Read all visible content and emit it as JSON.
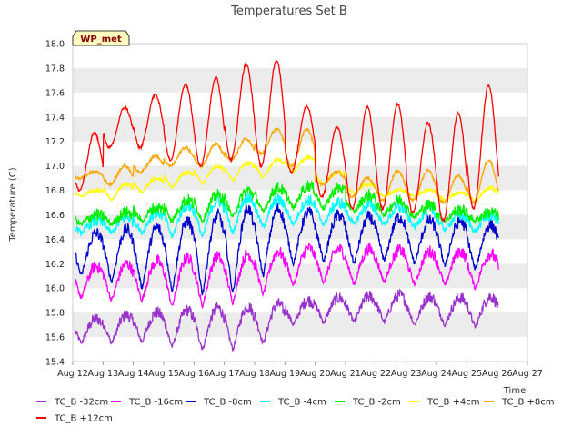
{
  "chart_data": {
    "type": "line",
    "title": "Temperatures Set B",
    "xlabel": "Time",
    "ylabel": "Temperature (C)",
    "ylim": [
      15.4,
      18.0
    ],
    "xlim": [
      "Aug 12",
      "Aug 27"
    ],
    "grid": "horizontal bands",
    "legend_position": "bottom",
    "station_label": "WP_met",
    "x_ticks": [
      "Aug 12",
      "Aug 13",
      "Aug 14",
      "Aug 15",
      "Aug 16",
      "Aug 17",
      "Aug 18",
      "Aug 19",
      "Aug 20",
      "Aug 21",
      "Aug 22",
      "Aug 23",
      "Aug 24",
      "Aug 25",
      "Aug 26",
      "Aug 27"
    ],
    "y_ticks": [
      "15.4",
      "15.6",
      "15.8",
      "16.0",
      "16.2",
      "16.4",
      "16.6",
      "16.8",
      "17.0",
      "17.2",
      "17.4",
      "17.6",
      "17.8",
      "18.0"
    ],
    "series": [
      {
        "name": "TC_B -32cm",
        "color": "#9932cc",
        "daily_min": [
          15.55,
          15.55,
          15.56,
          15.52,
          15.5,
          15.5,
          15.55,
          15.7,
          15.72,
          15.72,
          15.72,
          15.7,
          15.7,
          15.68
        ],
        "daily_max": [
          15.75,
          15.78,
          15.8,
          15.82,
          15.84,
          15.85,
          15.87,
          15.9,
          15.92,
          15.93,
          15.94,
          15.93,
          15.92,
          15.93
        ]
      },
      {
        "name": "TC_B -16cm",
        "color": "#ff00ff",
        "daily_min": [
          15.92,
          15.9,
          15.9,
          15.85,
          15.85,
          15.88,
          15.95,
          16.02,
          16.05,
          16.03,
          16.05,
          16.03,
          16.02,
          16.0
        ],
        "daily_max": [
          16.18,
          16.2,
          16.22,
          16.25,
          16.26,
          16.28,
          16.3,
          16.33,
          16.32,
          16.32,
          16.31,
          16.3,
          16.3,
          16.28
        ]
      },
      {
        "name": "TC_B -8cm",
        "color": "#0000cd",
        "daily_min": [
          16.1,
          16.05,
          16.0,
          15.98,
          15.95,
          15.96,
          16.1,
          16.2,
          16.22,
          16.2,
          16.22,
          16.2,
          16.18,
          16.15
        ],
        "daily_max": [
          16.45,
          16.48,
          16.5,
          16.55,
          16.6,
          16.65,
          16.65,
          16.62,
          16.6,
          16.58,
          16.58,
          16.55,
          16.55,
          16.52
        ]
      },
      {
        "name": "TC_B -4cm",
        "color": "#00ffff",
        "daily_min": [
          16.45,
          16.45,
          16.45,
          16.42,
          16.42,
          16.45,
          16.5,
          16.52,
          16.52,
          16.52,
          16.52,
          16.5,
          16.48,
          16.46
        ],
        "daily_max": [
          16.55,
          16.58,
          16.62,
          16.68,
          16.72,
          16.75,
          16.72,
          16.72,
          16.7,
          16.68,
          16.66,
          16.64,
          16.6,
          16.6
        ]
      },
      {
        "name": "TC_B -2cm",
        "color": "#00ee00",
        "daily_min": [
          16.52,
          16.52,
          16.55,
          16.55,
          16.55,
          16.58,
          16.62,
          16.65,
          16.65,
          16.62,
          16.6,
          16.58,
          16.55,
          16.55
        ],
        "daily_max": [
          16.6,
          16.62,
          16.66,
          16.72,
          16.76,
          16.8,
          16.82,
          16.84,
          16.82,
          16.76,
          16.72,
          16.68,
          16.64,
          16.62
        ]
      },
      {
        "name": "TC_B +4cm",
        "color": "#ffff00",
        "daily_min": [
          16.75,
          16.72,
          16.78,
          16.82,
          16.85,
          16.88,
          16.9,
          16.95,
          16.85,
          16.78,
          16.75,
          16.75,
          16.72,
          16.7
        ],
        "daily_max": [
          16.8,
          16.85,
          16.9,
          16.95,
          17.0,
          17.02,
          17.05,
          17.07,
          16.95,
          16.85,
          16.8,
          16.8,
          16.78,
          16.82
        ]
      },
      {
        "name": "TC_B +8cm",
        "color": "#ffa500",
        "daily_min": [
          16.9,
          16.85,
          16.95,
          17.0,
          17.0,
          17.05,
          17.1,
          17.0,
          16.85,
          16.75,
          16.72,
          16.72,
          16.7,
          16.7
        ],
        "daily_max": [
          16.95,
          17.0,
          17.08,
          17.15,
          17.18,
          17.22,
          17.3,
          17.3,
          16.95,
          16.9,
          16.96,
          16.96,
          16.92,
          17.05
        ]
      },
      {
        "name": "TC_B +12cm",
        "color": "#ff0000",
        "daily_min": [
          16.8,
          17.15,
          17.15,
          17.05,
          17.0,
          17.05,
          17.0,
          16.95,
          16.75,
          16.65,
          16.65,
          16.62,
          16.55,
          16.65
        ],
        "daily_max": [
          17.27,
          17.48,
          17.58,
          17.67,
          17.72,
          17.83,
          17.86,
          17.49,
          17.32,
          17.48,
          17.51,
          17.35,
          17.43,
          17.66
        ]
      }
    ]
  }
}
